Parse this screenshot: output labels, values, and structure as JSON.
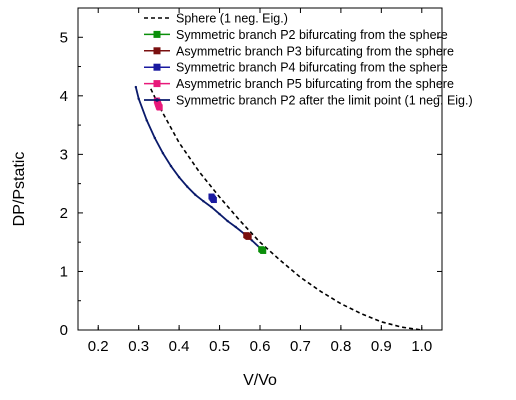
{
  "chart_data": {
    "type": "line",
    "xlabel": "V/Vo",
    "ylabel": "DP/Pstatic",
    "xlim": [
      0.15,
      1.05
    ],
    "ylim": [
      0,
      5.5
    ],
    "x_ticks": [
      "0.2",
      "0.3",
      "0.4",
      "0.5",
      "0.6",
      "0.7",
      "0.8",
      "0.9",
      "1.0"
    ],
    "x_tick_values": [
      0.2,
      0.3,
      0.4,
      0.5,
      0.6,
      0.7,
      0.8,
      0.9,
      1.0
    ],
    "y_ticks": [
      "0",
      "1",
      "2",
      "3",
      "4",
      "5"
    ],
    "y_tick_values": [
      0,
      1,
      2,
      3,
      4,
      5
    ],
    "grid": false,
    "legend_position": "top",
    "series": [
      {
        "name": "Sphere (1 neg. Eig.)",
        "style": "dash",
        "color": "#000000",
        "x": [
          0.33,
          0.35,
          0.4,
          0.45,
          0.5,
          0.55,
          0.6,
          0.65,
          0.7,
          0.75,
          0.8,
          0.85,
          0.9,
          0.95,
          1.0
        ],
        "y": [
          4.12,
          3.83,
          3.2,
          2.7,
          2.27,
          1.87,
          1.5,
          1.19,
          0.9,
          0.66,
          0.45,
          0.28,
          0.14,
          0.05,
          0.0
        ]
      },
      {
        "name": "Symmetric branch P2 bifurcating from the sphere",
        "style": "marker-line",
        "color": "#0a8f0a",
        "x": [
          0.603,
          0.605,
          0.607,
          0.608
        ],
        "y": [
          1.38,
          1.37,
          1.36,
          1.35
        ]
      },
      {
        "name": "Asymmetric branch P3 bifurcating from the sphere",
        "style": "marker-line",
        "color": "#7a1010",
        "x": [
          0.566,
          0.568,
          0.57,
          0.572
        ],
        "y": [
          1.62,
          1.61,
          1.6,
          1.59
        ]
      },
      {
        "name": "Symmetric branch P4 bifurcating from the sphere",
        "style": "marker-line",
        "color": "#1a1aa0",
        "x": [
          0.48,
          0.482,
          0.484,
          0.486
        ],
        "y": [
          2.28,
          2.26,
          2.24,
          2.22
        ]
      },
      {
        "name": "Asymmetric branch P5 bifurcating from the sphere",
        "style": "marker-line",
        "color": "#e8197a",
        "x": [
          0.345,
          0.346,
          0.347,
          0.348,
          0.349,
          0.35,
          0.351,
          0.352
        ],
        "y": [
          3.92,
          3.9,
          3.88,
          3.86,
          3.84,
          3.82,
          3.81,
          3.8
        ]
      },
      {
        "name": "Symmetric branch P2 after the limit point (1 neg. Eig.)",
        "style": "dot-line",
        "color": "#0a1a6b",
        "x": [
          0.293,
          0.3,
          0.32,
          0.34,
          0.36,
          0.38,
          0.4,
          0.42,
          0.44,
          0.46,
          0.48,
          0.5,
          0.52,
          0.54,
          0.56,
          0.58,
          0.6,
          0.608
        ],
        "y": [
          4.15,
          3.95,
          3.58,
          3.28,
          3.02,
          2.8,
          2.61,
          2.45,
          2.31,
          2.2,
          2.1,
          1.98,
          1.86,
          1.76,
          1.65,
          1.53,
          1.4,
          1.35
        ]
      }
    ]
  }
}
